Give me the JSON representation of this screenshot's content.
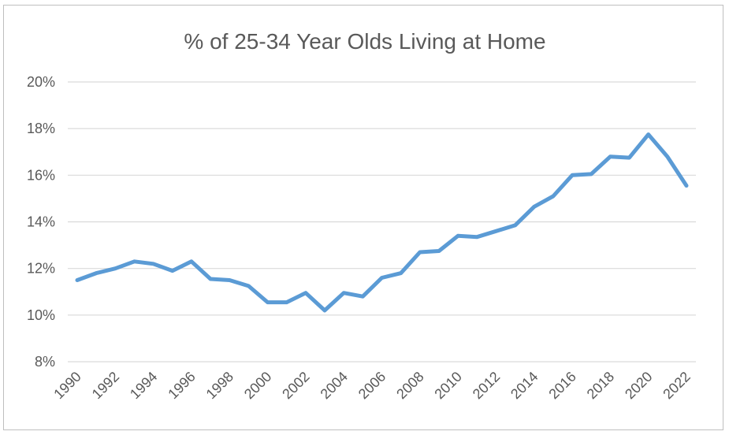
{
  "chart_data": {
    "type": "line",
    "title": "% of 25-34 Year Olds Living at Home",
    "xlabel": "",
    "ylabel": "",
    "ylim": [
      8,
      20
    ],
    "yticks": [
      8,
      10,
      12,
      14,
      16,
      18,
      20
    ],
    "ytick_labels": [
      "8%",
      "10%",
      "12%",
      "14%",
      "16%",
      "18%",
      "20%"
    ],
    "x": [
      1990,
      1991,
      1992,
      1993,
      1994,
      1995,
      1996,
      1997,
      1998,
      1999,
      2000,
      2001,
      2002,
      2003,
      2004,
      2005,
      2006,
      2007,
      2008,
      2009,
      2010,
      2011,
      2012,
      2013,
      2014,
      2015,
      2016,
      2017,
      2018,
      2019,
      2020,
      2021,
      2022
    ],
    "xtick_labels": [
      "1990",
      "1992",
      "1994",
      "1996",
      "1998",
      "2000",
      "2002",
      "2004",
      "2006",
      "2008",
      "2010",
      "2012",
      "2014",
      "2016",
      "2018",
      "2020",
      "2022"
    ],
    "series": [
      {
        "name": "",
        "color": "#5b9bd5",
        "values": [
          11.5,
          11.8,
          12.0,
          12.3,
          12.2,
          11.9,
          12.3,
          11.55,
          11.5,
          11.25,
          10.55,
          10.55,
          10.95,
          10.2,
          10.95,
          10.8,
          11.6,
          11.8,
          12.7,
          12.75,
          13.4,
          13.35,
          13.6,
          13.85,
          14.65,
          15.1,
          16.0,
          16.05,
          16.8,
          16.75,
          17.75,
          16.8,
          15.55
        ]
      }
    ],
    "grid": true,
    "legend": "none"
  }
}
